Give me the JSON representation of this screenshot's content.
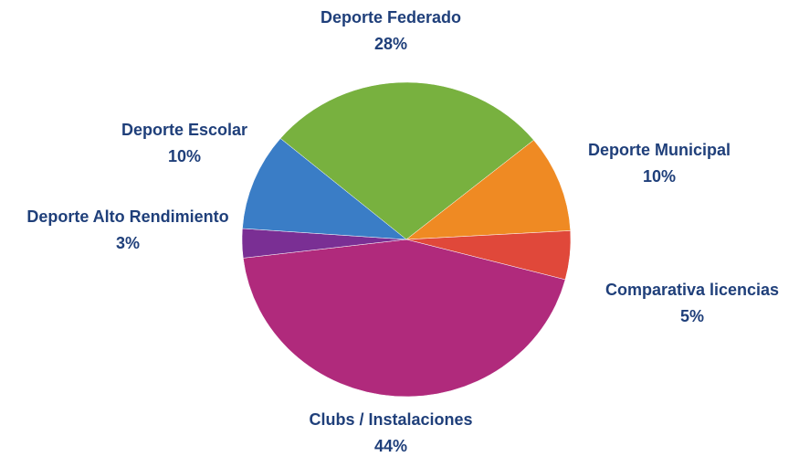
{
  "chart_data": {
    "type": "pie",
    "categories": [
      "Deporte Federado",
      "Deporte Municipal",
      "Comparativa licencias",
      "Clubs / Instalaciones",
      "Deporte Alto Rendimiento",
      "Deporte Escolar"
    ],
    "values": [
      28,
      10,
      5,
      44,
      3,
      10
    ],
    "value_labels": [
      "28%",
      "10%",
      "5%",
      "44%",
      "3%",
      "10%"
    ],
    "colors": [
      "#78b13f",
      "#ef8a23",
      "#e0483a",
      "#b02a7c",
      "#7a2f94",
      "#3a7dc6"
    ]
  }
}
